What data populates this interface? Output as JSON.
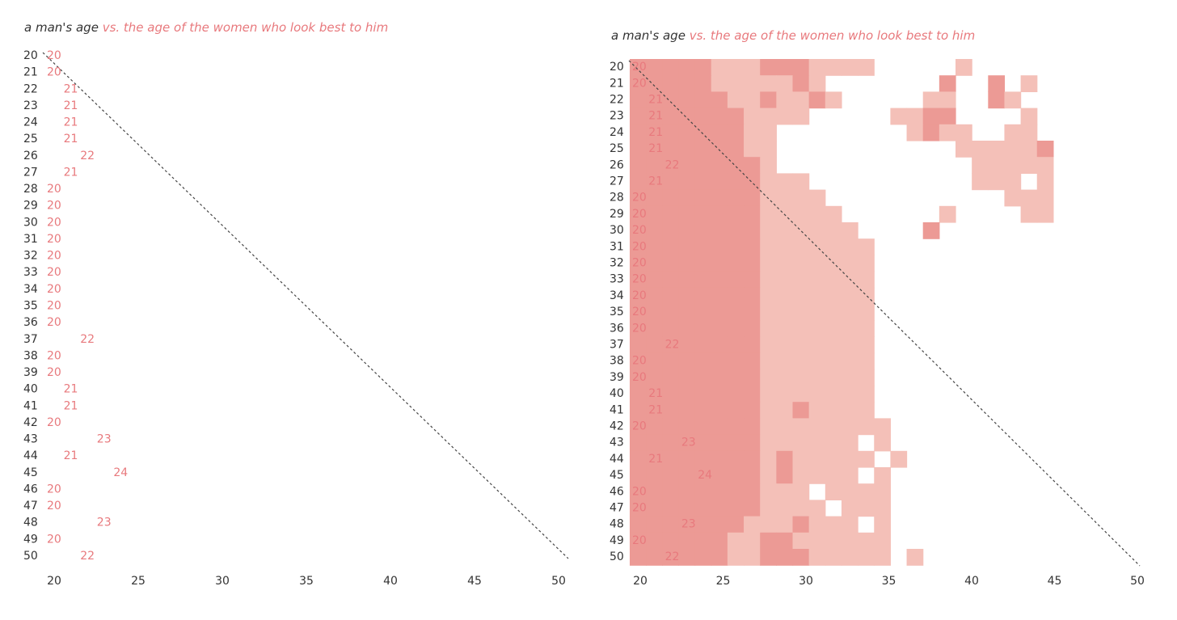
{
  "colors": {
    "accent": "#e8797d",
    "axis_text": "#333333",
    "cell_dark": "#ec9a95",
    "cell_light": "#f4c0b8",
    "diagonal": "#444444"
  },
  "chart_data": [
    {
      "type": "table",
      "title_prefix": "a man's age",
      "title_rest": " vs. the age of the women who look best to him",
      "xlabel": "",
      "ylabel": "",
      "x_ticks": [
        20,
        25,
        30,
        35,
        40,
        45,
        50
      ],
      "xlim": [
        20,
        50
      ],
      "ylim": [
        20,
        50
      ],
      "men_ages": [
        20,
        21,
        22,
        23,
        24,
        25,
        26,
        27,
        28,
        29,
        30,
        31,
        32,
        33,
        34,
        35,
        36,
        37,
        38,
        39,
        40,
        41,
        42,
        43,
        44,
        45,
        46,
        47,
        48,
        49,
        50
      ],
      "preferred_female_age": [
        20,
        20,
        21,
        21,
        21,
        21,
        22,
        21,
        20,
        20,
        20,
        20,
        20,
        20,
        20,
        20,
        20,
        22,
        20,
        20,
        21,
        21,
        20,
        23,
        21,
        24,
        20,
        20,
        23,
        20,
        22
      ],
      "diagonal": [
        [
          20,
          20
        ],
        [
          50,
          50
        ]
      ]
    },
    {
      "type": "heatmap",
      "title_prefix": "a man's age",
      "title_rest": " vs. the age of the women who look best to him",
      "xlabel": "",
      "ylabel": "",
      "x_ticks": [
        20,
        25,
        30,
        35,
        40,
        45,
        50
      ],
      "xlim": [
        20,
        50
      ],
      "ylim": [
        20,
        50
      ],
      "men_ages": [
        20,
        21,
        22,
        23,
        24,
        25,
        26,
        27,
        28,
        29,
        30,
        31,
        32,
        33,
        34,
        35,
        36,
        37,
        38,
        39,
        40,
        41,
        42,
        43,
        44,
        45,
        46,
        47,
        48,
        49,
        50
      ],
      "preferred_female_age": [
        20,
        20,
        21,
        21,
        21,
        21,
        22,
        21,
        20,
        20,
        20,
        20,
        20,
        20,
        20,
        20,
        20,
        22,
        20,
        20,
        21,
        21,
        20,
        23,
        21,
        24,
        20,
        20,
        23,
        20,
        22
      ],
      "diagonal": [
        [
          20,
          20
        ],
        [
          50,
          50
        ]
      ],
      "cell_legend": {
        "1": "light",
        "2": "dark"
      },
      "matrix_rows": [
        "22222111222111100000100000",
        "22222111112100000002002010",
        "22222211211210000011002100",
        "22222221111000001122000010",
        "22222221100000000121100110",
        "22222221100000000000111112",
        "22222222100000000000011111",
        "22222222111000000000011101",
        "22222222111100000000000111",
        "22222222111110000001000011",
        "22222222111111000020000000",
        "22222222111111100000000000",
        "22222222111111100000000000",
        "22222222111111100000000000",
        "22222222111111100000000000",
        "22222222111111100000000000",
        "22222222111111100000000000",
        "22222222111111100000000000",
        "22222222111111100000000000",
        "22222222111111100000000000",
        "22222222111111100000000000",
        "22222222112111100000000000",
        "22222222111111110000000000",
        "22222222111111010000000000",
        "22222222121111101000000000",
        "22222222121111010000000000",
        "22222222111011110000000000",
        "22222222111101110000000000",
        "22222221112111010000000000",
        "22222211221111110000000000",
        "22222211222111110100000000"
      ]
    }
  ]
}
